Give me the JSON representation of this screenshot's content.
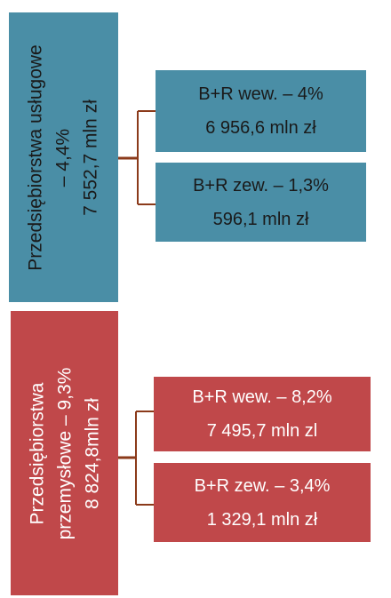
{
  "groups": [
    {
      "id": "services",
      "color": "#4a8ea6",
      "parent": {
        "lines": [
          "Przedsiębiorstwa usługowe",
          "– 4,4%",
          "7 552,7 mln zł"
        ]
      },
      "children": [
        {
          "lines": [
            "B+R wew. – 4%",
            "6 956,6 mln zł"
          ]
        },
        {
          "lines": [
            "B+R zew. – 1,3%",
            "596,1 mln zł"
          ]
        }
      ]
    },
    {
      "id": "industry",
      "color": "#c0484a",
      "parent": {
        "lines": [
          "Przedsiębiorstwa",
          "przemysłowe – 9,3%",
          "8 824,8mln zł"
        ]
      },
      "children": [
        {
          "lines": [
            "B+R wew. – 8,2%",
            "7 495,7 mln zl"
          ]
        },
        {
          "lines": [
            "B+R zew. – 3,4%",
            "1 329,1 mln zł"
          ]
        }
      ]
    }
  ],
  "connector_color": "#8b3a1a"
}
